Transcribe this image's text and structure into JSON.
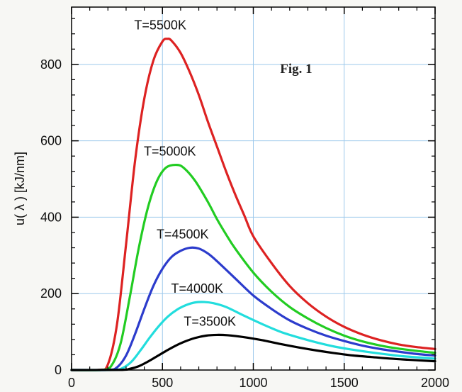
{
  "chart_data": {
    "type": "line",
    "title": "",
    "xlabel": "",
    "ylabel": "u( λ )  [kJ/nm]",
    "xlim": [
      0,
      2000
    ],
    "ylim": [
      0,
      950
    ],
    "xticks": [
      0,
      500,
      1000,
      1500,
      2000
    ],
    "yticks": [
      0,
      200,
      400,
      600,
      800
    ],
    "grid": true,
    "grid_color": "#9ec9ec",
    "annotation": "Fig. 1",
    "series": [
      {
        "name": "T=5500K",
        "color": "#dd2222",
        "points": [
          [
            0,
            0
          ],
          [
            150,
            0.5
          ],
          [
            200,
            15
          ],
          [
            250,
            120
          ],
          [
            300,
            330
          ],
          [
            350,
            550
          ],
          [
            400,
            710
          ],
          [
            450,
            810
          ],
          [
            500,
            860
          ],
          [
            527,
            867
          ],
          [
            550,
            862
          ],
          [
            600,
            830
          ],
          [
            650,
            780
          ],
          [
            700,
            720
          ],
          [
            750,
            650
          ],
          [
            800,
            585
          ],
          [
            850,
            520
          ],
          [
            900,
            460
          ],
          [
            950,
            405
          ],
          [
            1000,
            350
          ],
          [
            1100,
            280
          ],
          [
            1200,
            220
          ],
          [
            1300,
            175
          ],
          [
            1400,
            140
          ],
          [
            1500,
            113
          ],
          [
            1600,
            93
          ],
          [
            1700,
            78
          ],
          [
            1800,
            67
          ],
          [
            1900,
            60
          ],
          [
            2000,
            55
          ]
        ]
      },
      {
        "name": "T=5000K",
        "color": "#22cc22",
        "points": [
          [
            0,
            0
          ],
          [
            170,
            0.5
          ],
          [
            220,
            12
          ],
          [
            270,
            70
          ],
          [
            320,
            190
          ],
          [
            370,
            320
          ],
          [
            420,
            425
          ],
          [
            470,
            495
          ],
          [
            520,
            530
          ],
          [
            580,
            537
          ],
          [
            620,
            528
          ],
          [
            680,
            495
          ],
          [
            750,
            440
          ],
          [
            800,
            395
          ],
          [
            850,
            355
          ],
          [
            900,
            318
          ],
          [
            1000,
            255
          ],
          [
            1100,
            205
          ],
          [
            1200,
            165
          ],
          [
            1300,
            135
          ],
          [
            1400,
            110
          ],
          [
            1500,
            90
          ],
          [
            1600,
            75
          ],
          [
            1700,
            64
          ],
          [
            1800,
            56
          ],
          [
            1900,
            50
          ],
          [
            2000,
            45
          ]
        ]
      },
      {
        "name": "T=4500K",
        "color": "#2c3ccc",
        "points": [
          [
            0,
            0
          ],
          [
            200,
            0.5
          ],
          [
            250,
            7
          ],
          [
            300,
            38
          ],
          [
            350,
            95
          ],
          [
            400,
            160
          ],
          [
            450,
            220
          ],
          [
            500,
            265
          ],
          [
            550,
            296
          ],
          [
            600,
            312
          ],
          [
            650,
            320
          ],
          [
            700,
            318
          ],
          [
            750,
            305
          ],
          [
            800,
            285
          ],
          [
            900,
            240
          ],
          [
            1000,
            195
          ],
          [
            1100,
            160
          ],
          [
            1200,
            130
          ],
          [
            1300,
            108
          ],
          [
            1400,
            90
          ],
          [
            1500,
            76
          ],
          [
            1600,
            64
          ],
          [
            1700,
            55
          ],
          [
            1800,
            48
          ],
          [
            1900,
            42
          ],
          [
            2000,
            38
          ]
        ]
      },
      {
        "name": "T=4000K",
        "color": "#22dddd",
        "points": [
          [
            0,
            0
          ],
          [
            230,
            0.5
          ],
          [
            280,
            5
          ],
          [
            330,
            22
          ],
          [
            380,
            52
          ],
          [
            430,
            85
          ],
          [
            480,
            115
          ],
          [
            530,
            140
          ],
          [
            580,
            158
          ],
          [
            630,
            170
          ],
          [
            680,
            177
          ],
          [
            730,
            178
          ],
          [
            780,
            175
          ],
          [
            850,
            165
          ],
          [
            950,
            142
          ],
          [
            1050,
            120
          ],
          [
            1150,
            100
          ],
          [
            1250,
            85
          ],
          [
            1350,
            72
          ],
          [
            1450,
            61
          ],
          [
            1550,
            53
          ],
          [
            1650,
            46
          ],
          [
            1750,
            40
          ],
          [
            1850,
            35
          ],
          [
            2000,
            30
          ]
        ]
      },
      {
        "name": "T=3500K",
        "color": "#000000",
        "points": [
          [
            0,
            0
          ],
          [
            270,
            0.5
          ],
          [
            320,
            3
          ],
          [
            370,
            10
          ],
          [
            420,
            22
          ],
          [
            470,
            36
          ],
          [
            520,
            50
          ],
          [
            570,
            63
          ],
          [
            620,
            74
          ],
          [
            680,
            84
          ],
          [
            740,
            90
          ],
          [
            800,
            92
          ],
          [
            860,
            91
          ],
          [
            950,
            86
          ],
          [
            1050,
            78
          ],
          [
            1150,
            68
          ],
          [
            1250,
            59
          ],
          [
            1350,
            51
          ],
          [
            1450,
            44
          ],
          [
            1550,
            38
          ],
          [
            1650,
            34
          ],
          [
            1750,
            30
          ],
          [
            1850,
            27
          ],
          [
            2000,
            23
          ]
        ]
      }
    ]
  }
}
